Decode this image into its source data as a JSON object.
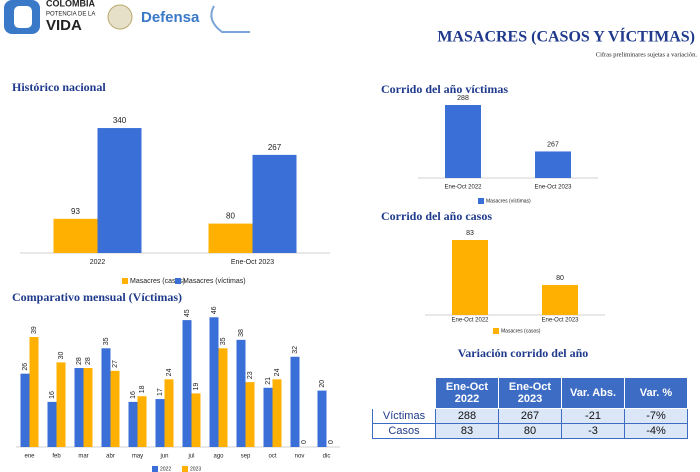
{
  "header": {
    "logo_line1": "COLOMBIA",
    "logo_line2": "POTENCIA DE LA",
    "logo_line3": "VIDA",
    "ministry": "Defensa",
    "title": "MASACRES (CASOS Y VÍCTIMAS)",
    "note": "Cifras preliminares sujetas a variación."
  },
  "chart_data": [
    {
      "type": "bar",
      "title": "Histórico nacional",
      "categories": [
        "2022",
        "Ene-Oct 2023"
      ],
      "series": [
        {
          "name": "Masacres (casos)",
          "color": "#ffb000",
          "values": [
            93,
            80
          ]
        },
        {
          "name": "Masacres (víctimas)",
          "color": "#3a6fd8",
          "values": [
            340,
            267
          ]
        }
      ],
      "ylim": [
        0,
        400
      ],
      "legend": "bottom"
    },
    {
      "type": "bar",
      "title": "Corrido del año víctimas",
      "categories": [
        "Ene-Oct 2022",
        "Ene-Oct 2023"
      ],
      "series": [
        {
          "name": "Masacres (víctimas)",
          "color": "#3a6fd8",
          "values": [
            288,
            267
          ]
        }
      ],
      "ylim": [
        255,
        295
      ],
      "legend": "bottom"
    },
    {
      "type": "bar",
      "title": "Corrido del año casos",
      "categories": [
        "Ene-Oct 2022",
        "Ene-Oct 2023"
      ],
      "series": [
        {
          "name": "Masacres (casos)",
          "color": "#ffb000",
          "values": [
            83,
            80
          ]
        }
      ],
      "ylim": [
        78,
        85
      ],
      "legend": "bottom"
    },
    {
      "type": "bar",
      "title": "Comparativo mensual (Víctimas)",
      "categories": [
        "ene",
        "feb",
        "mar",
        "abr",
        "may",
        "jun",
        "jul",
        "ago",
        "sep",
        "oct",
        "nov",
        "dic"
      ],
      "series": [
        {
          "name": "2022",
          "color": "#3a6fd8",
          "values": [
            26,
            16,
            28,
            35,
            16,
            17,
            45,
            46,
            38,
            21,
            32,
            20
          ]
        },
        {
          "name": "2023",
          "color": "#ffb000",
          "values": [
            39,
            30,
            28,
            27,
            18,
            24,
            19,
            35,
            23,
            24,
            0,
            0
          ]
        }
      ],
      "ylim": [
        0,
        50
      ],
      "legend": "bottom"
    }
  ],
  "table": {
    "title": "Variación corrido del año",
    "columns": [
      "Ene-Oct 2022",
      "Ene-Oct 2023",
      "Var. Abs.",
      "Var. %"
    ],
    "rows": [
      [
        "Víctimas",
        "288",
        "267",
        "-21",
        "-7%"
      ],
      [
        "Casos",
        "83",
        "80",
        "-3",
        "-4%"
      ]
    ]
  }
}
